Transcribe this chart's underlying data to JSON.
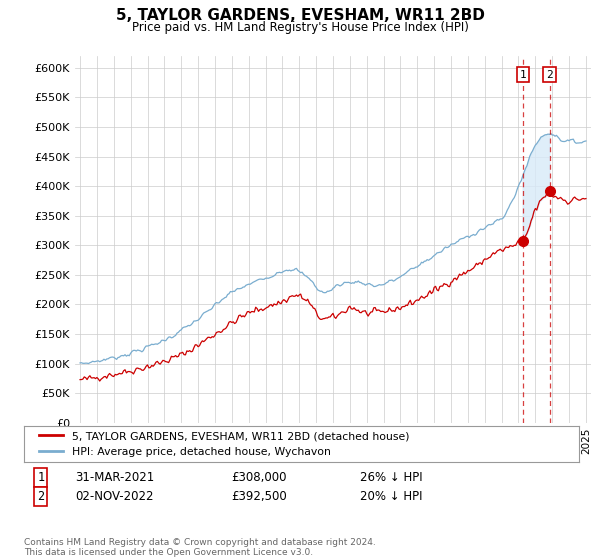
{
  "title": "5, TAYLOR GARDENS, EVESHAM, WR11 2BD",
  "subtitle": "Price paid vs. HM Land Registry's House Price Index (HPI)",
  "ylim": [
    0,
    600000
  ],
  "yticks": [
    0,
    50000,
    100000,
    150000,
    200000,
    250000,
    300000,
    350000,
    400000,
    450000,
    500000,
    550000,
    600000
  ],
  "xlim_start": 1994.7,
  "xlim_end": 2025.3,
  "transaction1_date": 2021.25,
  "transaction1_price": 308000,
  "transaction1_label": "1",
  "transaction2_date": 2022.84,
  "transaction2_price": 392500,
  "transaction2_label": "2",
  "red_color": "#cc0000",
  "blue_color": "#7aadcf",
  "shade_color": "#d8eaf8",
  "legend_entry1": "5, TAYLOR GARDENS, EVESHAM, WR11 2BD (detached house)",
  "legend_entry2": "HPI: Average price, detached house, Wychavon",
  "table_row1": [
    "1",
    "31-MAR-2021",
    "£308,000",
    "26% ↓ HPI"
  ],
  "table_row2": [
    "2",
    "02-NOV-2022",
    "£392,500",
    "20% ↓ HPI"
  ],
  "footer": "Contains HM Land Registry data © Crown copyright and database right 2024.\nThis data is licensed under the Open Government Licence v3.0.",
  "background_color": "#ffffff",
  "grid_color": "#cccccc"
}
